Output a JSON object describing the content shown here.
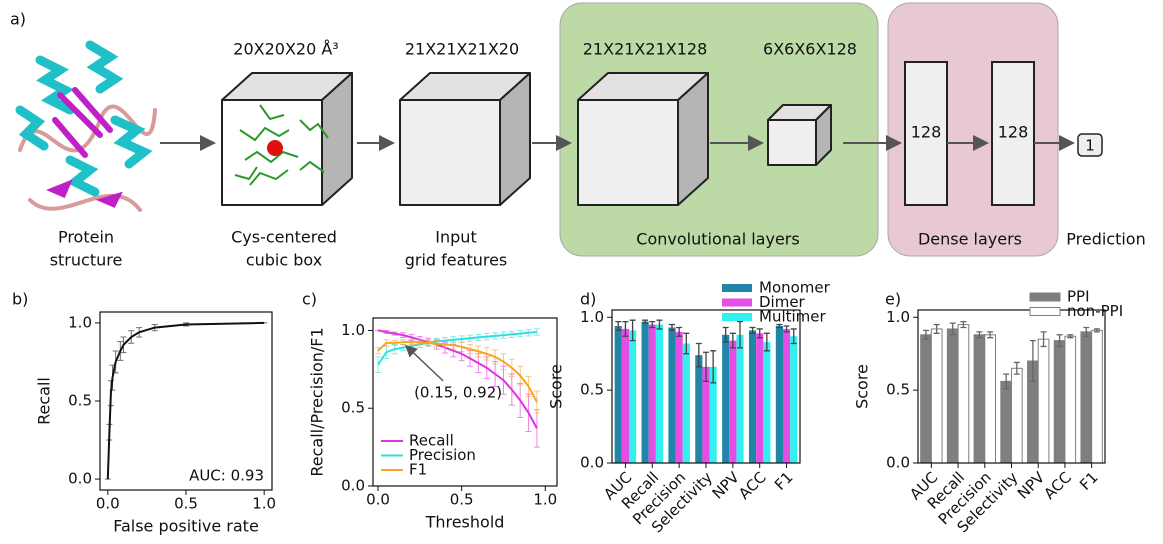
{
  "diagram": {
    "panel_label": "a)",
    "box_dims": [
      "20X20X20 Å³",
      "21X21X21X20",
      "21X21X21X128",
      "6X6X6X128"
    ],
    "dense_units": [
      "128",
      "128"
    ],
    "output": "1",
    "captions": [
      [
        "Protein",
        "structure"
      ],
      [
        "Cys-centered",
        "cubic box"
      ],
      [
        "Input",
        "grid features"
      ],
      [
        "Convolutional layers"
      ],
      [
        "Dense layers"
      ],
      [
        "Prediction"
      ]
    ]
  },
  "chart_data": [
    {
      "type": "line",
      "panel_label": "b)",
      "x_label": "False positive rate",
      "y_label": "Recall",
      "annotation": "AUC: 0.93",
      "color": "#111111",
      "x": [
        0,
        0.01,
        0.02,
        0.03,
        0.05,
        0.08,
        0.1,
        0.15,
        0.2,
        0.3,
        0.5,
        1.0
      ],
      "values": [
        0,
        0.3,
        0.55,
        0.65,
        0.75,
        0.82,
        0.86,
        0.91,
        0.94,
        0.97,
        0.99,
        1.0
      ],
      "errors": [
        0,
        0.05,
        0.08,
        0.08,
        0.07,
        0.06,
        0.05,
        0.04,
        0.03,
        0.02,
        0.01,
        0
      ],
      "xlim": [
        -0.05,
        1.05
      ],
      "ylim": [
        -0.07,
        1.07
      ],
      "xticks": [
        {
          "value": 0,
          "label": "0.0"
        },
        0.5,
        {
          "value": 1,
          "label": "1.0"
        }
      ],
      "yticks": [
        {
          "value": 0,
          "label": "0.0"
        },
        0.5,
        {
          "value": 1,
          "label": "1.0"
        }
      ]
    },
    {
      "type": "line",
      "panel_label": "c)",
      "x_label": "Threshold",
      "y_label": "Recall/Precision/F1",
      "annotation": {
        "text": "(0.15, 0.92)",
        "xy": [
          0.15,
          0.92
        ],
        "color": "#f0a020"
      },
      "legend": "lower left",
      "x": [
        0,
        0.05,
        0.1,
        0.15,
        0.2,
        0.25,
        0.3,
        0.35,
        0.4,
        0.45,
        0.5,
        0.55,
        0.6,
        0.65,
        0.7,
        0.75,
        0.8,
        0.85,
        0.9,
        0.95
      ],
      "series": [
        {
          "name": "Recall",
          "color": "#e033e0",
          "values": [
            1.0,
            0.99,
            0.98,
            0.97,
            0.955,
            0.94,
            0.925,
            0.91,
            0.89,
            0.87,
            0.85,
            0.82,
            0.79,
            0.76,
            0.72,
            0.68,
            0.62,
            0.55,
            0.47,
            0.37
          ],
          "errors": [
            0,
            0.01,
            0.01,
            0.015,
            0.02,
            0.02,
            0.025,
            0.03,
            0.035,
            0.04,
            0.045,
            0.05,
            0.06,
            0.07,
            0.08,
            0.09,
            0.1,
            0.11,
            0.12,
            0.12
          ]
        },
        {
          "name": "Precision",
          "color": "#33dede",
          "values": [
            0.78,
            0.86,
            0.88,
            0.89,
            0.9,
            0.91,
            0.92,
            0.93,
            0.935,
            0.94,
            0.945,
            0.95,
            0.955,
            0.96,
            0.965,
            0.97,
            0.975,
            0.98,
            0.985,
            0.99
          ],
          "errors": [
            0.05,
            0.04,
            0.03,
            0.02,
            0.02,
            0.02,
            0.02,
            0.02,
            0.02,
            0.02,
            0.02,
            0.02,
            0.02,
            0.02,
            0.02,
            0.02,
            0.02,
            0.02,
            0.02,
            0.02
          ]
        },
        {
          "name": "F1",
          "color": "#f5a623",
          "values": [
            0.87,
            0.92,
            0.92,
            0.925,
            0.925,
            0.925,
            0.92,
            0.915,
            0.91,
            0.905,
            0.895,
            0.88,
            0.865,
            0.85,
            0.83,
            0.8,
            0.76,
            0.71,
            0.64,
            0.54
          ],
          "errors": [
            0.02,
            0.02,
            0.015,
            0.015,
            0.015,
            0.015,
            0.015,
            0.02,
            0.02,
            0.025,
            0.03,
            0.03,
            0.035,
            0.04,
            0.045,
            0.05,
            0.055,
            0.06,
            0.065,
            0.07
          ]
        }
      ],
      "xlim": [
        -0.03,
        1.07
      ],
      "ylim": [
        0,
        1.08
      ],
      "xticks": [
        {
          "value": 0,
          "label": "0.0"
        },
        0.5,
        {
          "value": 1,
          "label": "1.0"
        }
      ],
      "yticks": [
        {
          "value": 0,
          "label": "0.0"
        },
        0.5,
        {
          "value": 1,
          "label": "1.0"
        }
      ]
    },
    {
      "type": "bar",
      "panel_label": "d)",
      "y_label": "Score",
      "legend": "upper center",
      "error_color": "#444444",
      "categories": [
        "AUC",
        "Recall",
        "Precision",
        "Selectivity",
        "NPV",
        "ACC",
        "F1"
      ],
      "series": [
        {
          "name": "Monomer",
          "color": "#1f86a8",
          "values": [
            0.94,
            0.97,
            0.93,
            0.74,
            0.88,
            0.91,
            0.94
          ],
          "errors": [
            0.03,
            0.01,
            0.02,
            0.08,
            0.05,
            0.02,
            0.01
          ]
        },
        {
          "name": "Dimer",
          "color": "#e64ce6",
          "values": [
            0.92,
            0.95,
            0.9,
            0.66,
            0.84,
            0.89,
            0.92
          ],
          "errors": [
            0.05,
            0.02,
            0.03,
            0.1,
            0.05,
            0.03,
            0.02
          ]
        },
        {
          "name": "Multimer",
          "color": "#33f0f0",
          "values": [
            0.91,
            0.95,
            0.82,
            0.66,
            0.88,
            0.83,
            0.87
          ],
          "errors": [
            0.07,
            0.03,
            0.07,
            0.11,
            0.09,
            0.06,
            0.05
          ]
        }
      ],
      "ylim": [
        0,
        1.05
      ],
      "yticks": [
        {
          "value": 0,
          "label": "0.0"
        },
        0.5,
        {
          "value": 1,
          "label": "1.0"
        }
      ]
    },
    {
      "type": "bar",
      "panel_label": "e)",
      "y_label": "Score",
      "legend": "upper right",
      "error_color": "#666666",
      "categories": [
        "AUC",
        "Recall",
        "Precision",
        "Selectivity",
        "NPV",
        "ACC",
        "F1"
      ],
      "series": [
        {
          "name": "PPI",
          "color": "#7f7f7f",
          "edgecolor": "#7f7f7f",
          "values": [
            0.88,
            0.92,
            0.88,
            0.56,
            0.7,
            0.84,
            0.9
          ],
          "errors": [
            0.03,
            0.04,
            0.02,
            0.05,
            0.14,
            0.04,
            0.03
          ]
        },
        {
          "name": "non-PPI",
          "color": "#ffffff",
          "edgecolor": "#7f7f7f",
          "values": [
            0.92,
            0.95,
            0.88,
            0.65,
            0.85,
            0.87,
            0.91
          ],
          "errors": [
            0.03,
            0.02,
            0.02,
            0.04,
            0.05,
            0.01,
            0.01
          ]
        }
      ],
      "ylim": [
        0,
        1.05
      ],
      "yticks": [
        {
          "value": 0,
          "label": "0.0"
        },
        0.5,
        {
          "value": 1,
          "label": "1.0"
        }
      ]
    }
  ]
}
